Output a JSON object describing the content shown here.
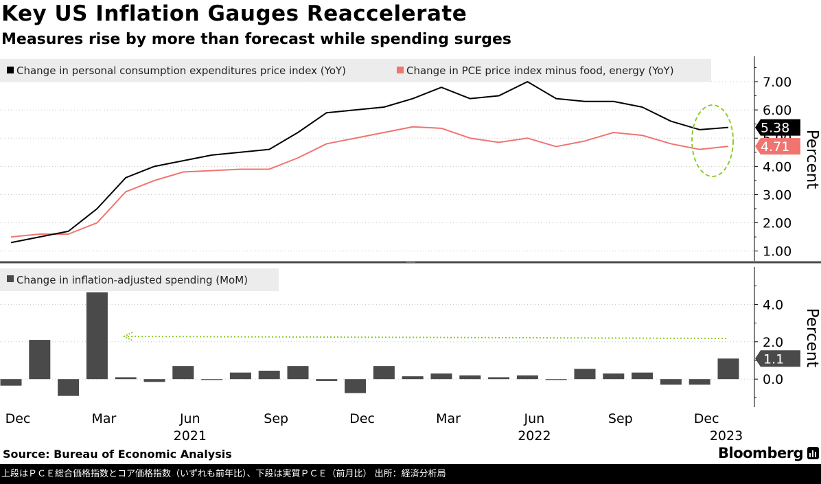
{
  "header": {
    "title": "Key US Inflation Gauges Reaccelerate",
    "subtitle": "Measures rise by more than forecast while spending surges"
  },
  "footer": {
    "source": "Source:  Bureau of Economic Analysis",
    "brand": "Bloomberg",
    "note": "上段はＰＣＥ総合価格指数とコア価格指数（いずれも前年比）、下段は実質ＰＣＥ（前月比） 出所：経済分析局"
  },
  "colors": {
    "headline": "#000000",
    "core": "#f07470",
    "bars": "#4a4a4a",
    "annotation": "#8ccc28",
    "legend_bg": "#ececec"
  },
  "chart_data": [
    {
      "type": "line",
      "x": [
        "2020-12",
        "2021-01",
        "2021-02",
        "2021-03",
        "2021-04",
        "2021-05",
        "2021-06",
        "2021-07",
        "2021-08",
        "2021-09",
        "2021-10",
        "2021-11",
        "2021-12",
        "2022-01",
        "2022-02",
        "2022-03",
        "2022-04",
        "2022-05",
        "2022-06",
        "2022-07",
        "2022-08",
        "2022-09",
        "2022-10",
        "2022-11",
        "2022-12",
        "2023-01"
      ],
      "series": [
        {
          "name": "Change in personal consumption expenditures price index (YoY)",
          "values": [
            1.3,
            1.5,
            1.7,
            2.5,
            3.6,
            4.0,
            4.2,
            4.4,
            4.5,
            4.6,
            5.2,
            5.9,
            6.0,
            6.1,
            6.4,
            6.8,
            6.4,
            6.5,
            7.0,
            6.4,
            6.3,
            6.3,
            6.1,
            5.6,
            5.3,
            5.38
          ],
          "last_label": "5.38"
        },
        {
          "name": "Change in PCE price index minus food, energy (YoY)",
          "values": [
            1.5,
            1.6,
            1.6,
            2.0,
            3.1,
            3.5,
            3.8,
            3.85,
            3.9,
            3.9,
            4.3,
            4.8,
            5.0,
            5.2,
            5.4,
            5.35,
            5.0,
            4.85,
            5.0,
            4.7,
            4.9,
            5.2,
            5.1,
            4.8,
            4.6,
            4.71
          ],
          "last_label": "4.71"
        }
      ],
      "yaxis_label": "Percent",
      "yticks": [
        "1.00",
        "2.00",
        "3.00",
        "4.00",
        "5.00",
        "6.00",
        "7.00"
      ],
      "ylim": [
        0.7,
        7.9
      ],
      "legend": "top-left",
      "annotation": "ellipse highlighting latest values"
    },
    {
      "type": "bar",
      "x": [
        "2020-12",
        "2021-01",
        "2021-02",
        "2021-03",
        "2021-04",
        "2021-05",
        "2021-06",
        "2021-07",
        "2021-08",
        "2021-09",
        "2021-10",
        "2021-11",
        "2021-12",
        "2022-01",
        "2022-02",
        "2022-03",
        "2022-04",
        "2022-05",
        "2022-06",
        "2022-07",
        "2022-08",
        "2022-09",
        "2022-10",
        "2022-11",
        "2022-12",
        "2023-01"
      ],
      "series": [
        {
          "name": "Change in inflation-adjusted spending (MoM)",
          "values": [
            -0.35,
            2.1,
            -0.9,
            4.65,
            0.1,
            -0.15,
            0.7,
            -0.05,
            0.35,
            0.45,
            0.7,
            -0.1,
            -0.75,
            0.7,
            0.15,
            0.3,
            0.2,
            0.1,
            0.2,
            -0.05,
            0.55,
            0.3,
            0.35,
            -0.3,
            -0.3,
            1.1
          ],
          "last_label": "1.1"
        }
      ],
      "yaxis_label": "Percent",
      "yticks": [
        "0.0",
        "2.0",
        "4.0"
      ],
      "ylim": [
        -1.5,
        6.0
      ],
      "legend": "top-left",
      "annotation": "dotted arrow pointing back to Mar 2021 peak"
    }
  ],
  "x_tick_labels": [
    {
      "month": "Dec",
      "year": ""
    },
    {
      "month": "Mar",
      "year": ""
    },
    {
      "month": "Jun",
      "year": "2021"
    },
    {
      "month": "Sep",
      "year": ""
    },
    {
      "month": "Dec",
      "year": ""
    },
    {
      "month": "Mar",
      "year": ""
    },
    {
      "month": "Jun",
      "year": "2022"
    },
    {
      "month": "Sep",
      "year": ""
    },
    {
      "month": "Dec",
      "year": "2023"
    }
  ]
}
